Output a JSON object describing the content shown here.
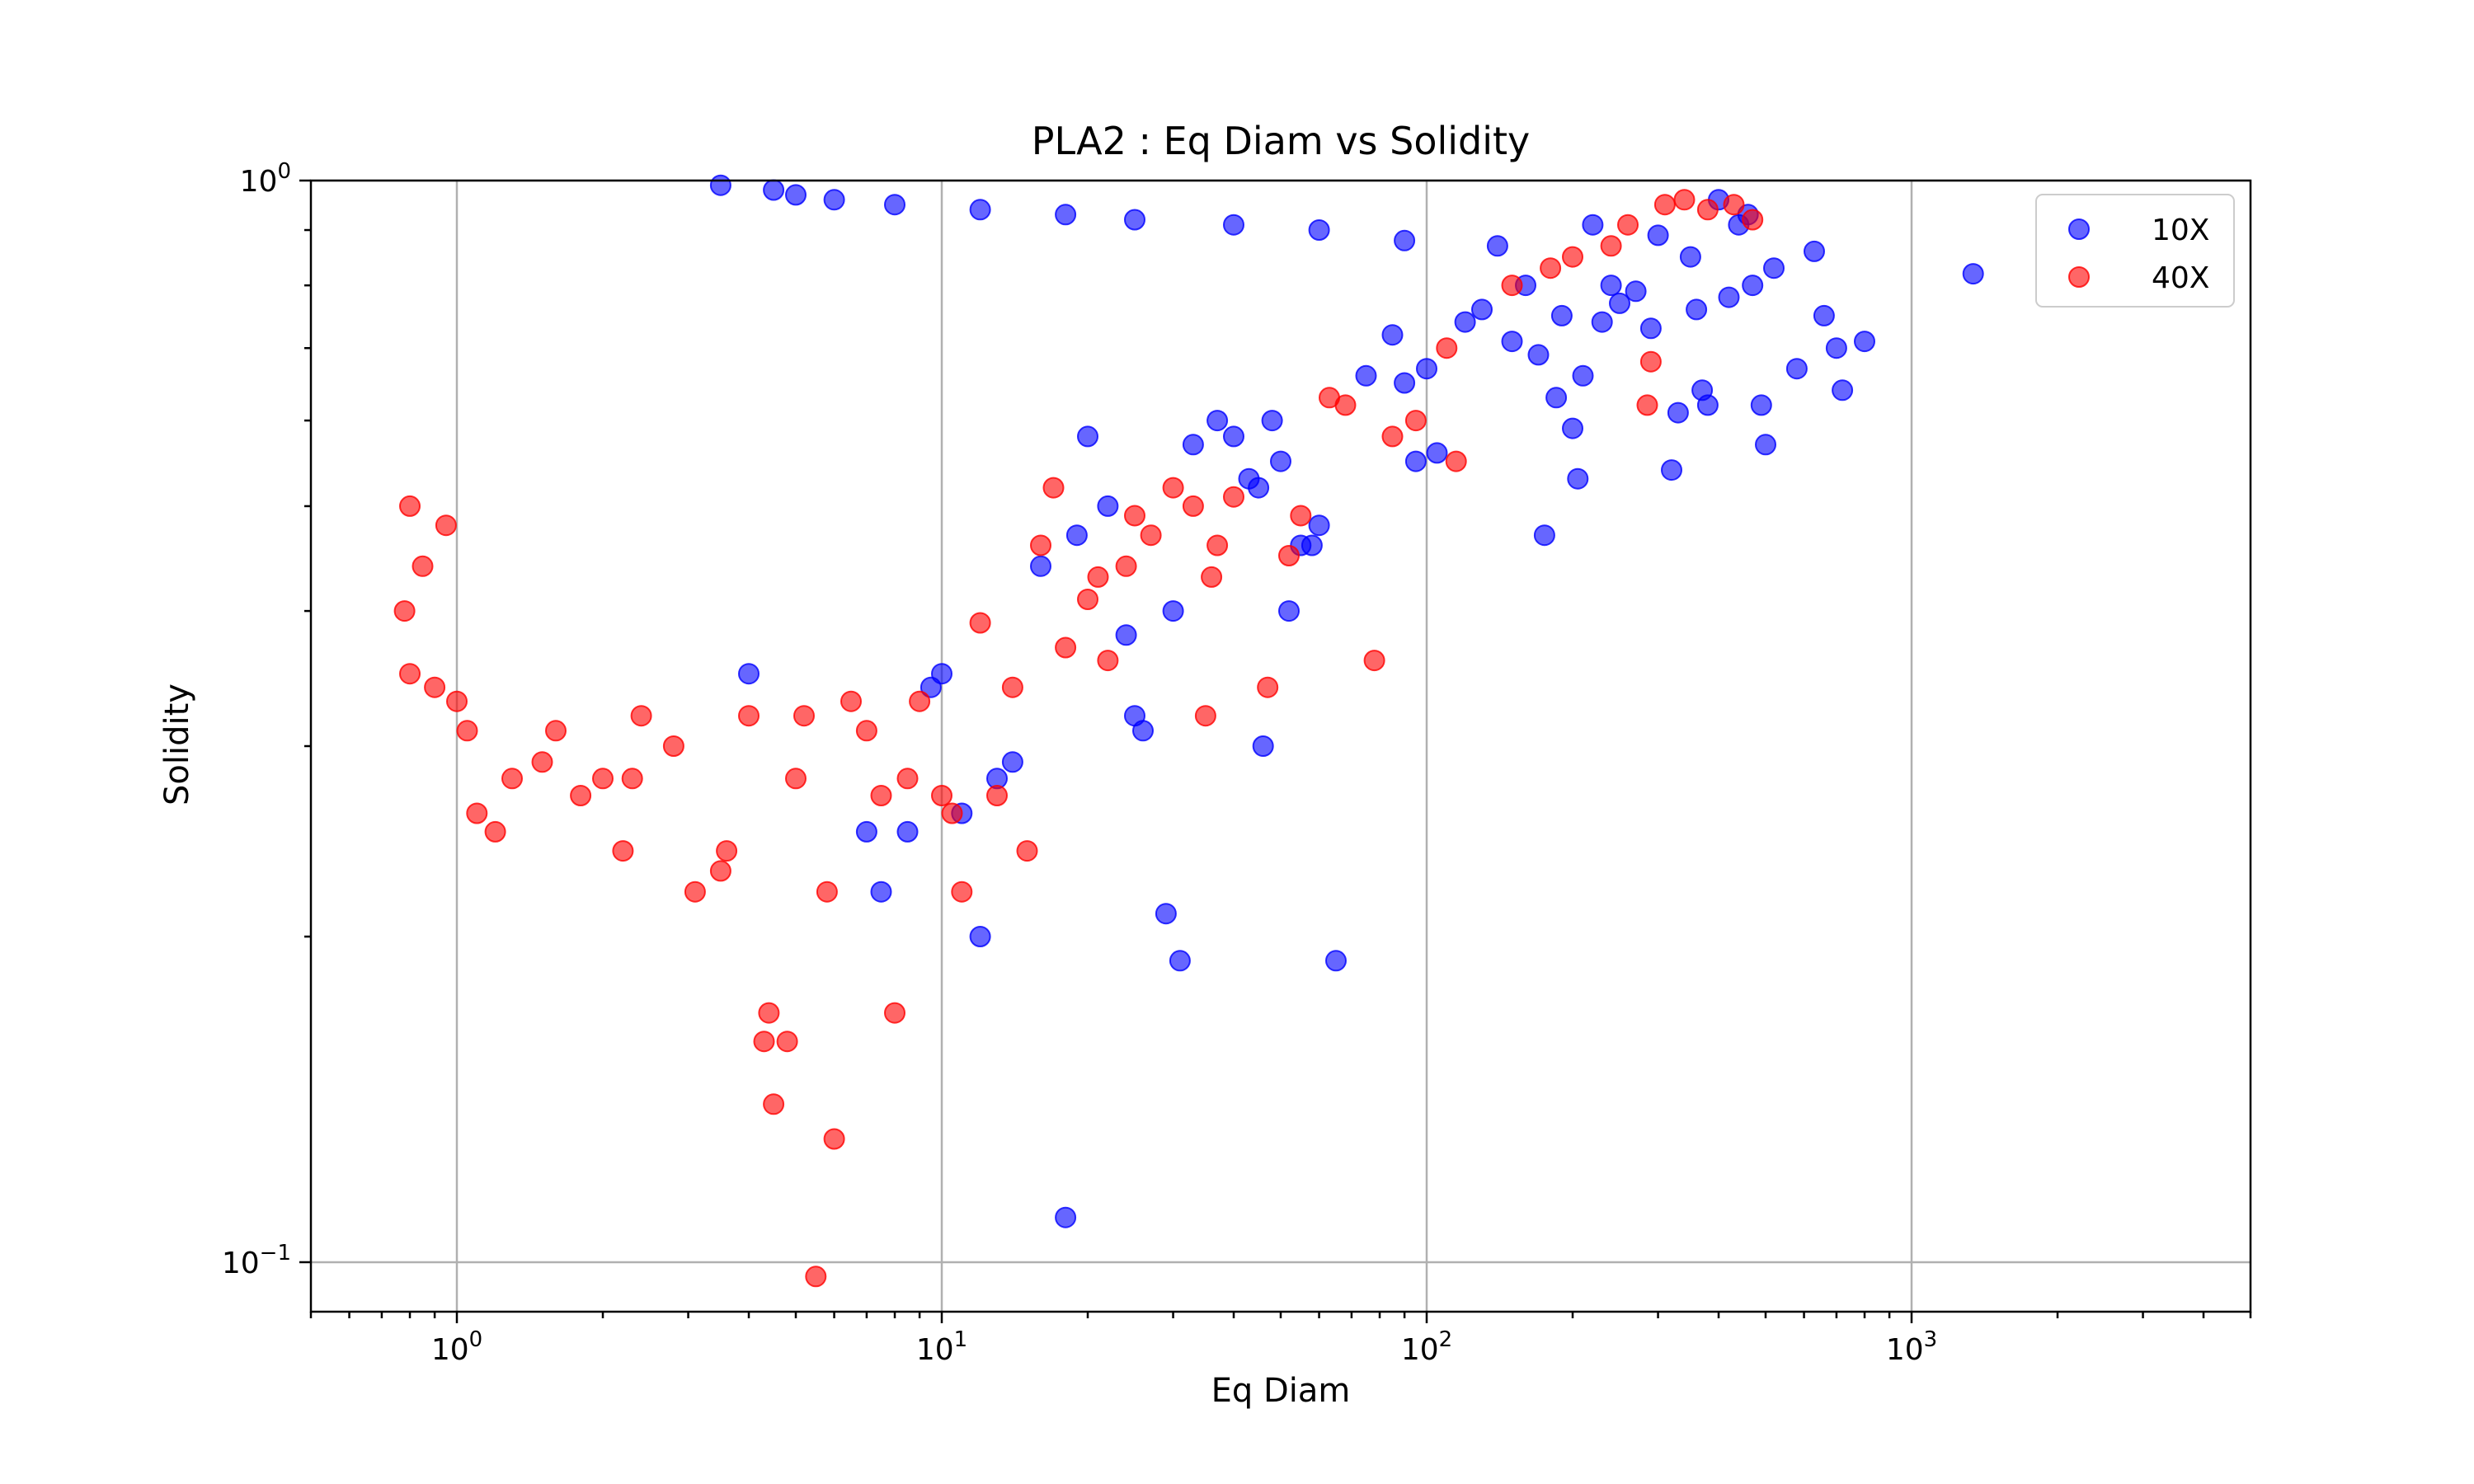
{
  "chart_data": {
    "type": "scatter",
    "title": "PLA2 : Eq Diam vs Solidity",
    "xlabel": "Eq Diam",
    "ylabel": "Solidity",
    "xscale": "log",
    "yscale": "log",
    "xlim": [
      0.5,
      5000
    ],
    "ylim": [
      0.09,
      1.0
    ],
    "grid": true,
    "legend": "top-right",
    "x_ticks": [
      {
        "base": "10",
        "exp": "0",
        "value": 1
      },
      {
        "base": "10",
        "exp": "1",
        "value": 10
      },
      {
        "base": "10",
        "exp": "2",
        "value": 100
      },
      {
        "base": "10",
        "exp": "3",
        "value": 1000
      }
    ],
    "y_ticks": [
      {
        "base": "10",
        "exp": "0",
        "value": 1.0
      },
      {
        "base": "10",
        "exp": "−1",
        "value": 0.1
      }
    ],
    "series": [
      {
        "name": "10X",
        "color": "#0000ff",
        "points": [
          [
            1340,
            0.82
          ],
          [
            800,
            0.71
          ],
          [
            700,
            0.7
          ],
          [
            720,
            0.64
          ],
          [
            660,
            0.75
          ],
          [
            630,
            0.86
          ],
          [
            580,
            0.67
          ],
          [
            520,
            0.83
          ],
          [
            490,
            0.62
          ],
          [
            500,
            0.57
          ],
          [
            470,
            0.8
          ],
          [
            460,
            0.93
          ],
          [
            440,
            0.91
          ],
          [
            420,
            0.78
          ],
          [
            400,
            0.96
          ],
          [
            380,
            0.62
          ],
          [
            370,
            0.64
          ],
          [
            360,
            0.76
          ],
          [
            350,
            0.85
          ],
          [
            330,
            0.61
          ],
          [
            320,
            0.54
          ],
          [
            300,
            0.89
          ],
          [
            290,
            0.73
          ],
          [
            270,
            0.79
          ],
          [
            250,
            0.77
          ],
          [
            240,
            0.8
          ],
          [
            230,
            0.74
          ],
          [
            220,
            0.91
          ],
          [
            210,
            0.66
          ],
          [
            205,
            0.53
          ],
          [
            200,
            0.59
          ],
          [
            190,
            0.75
          ],
          [
            185,
            0.63
          ],
          [
            175,
            0.47
          ],
          [
            170,
            0.69
          ],
          [
            160,
            0.8
          ],
          [
            150,
            0.71
          ],
          [
            140,
            0.87
          ],
          [
            130,
            0.76
          ],
          [
            120,
            0.74
          ],
          [
            105,
            0.56
          ],
          [
            100,
            0.67
          ],
          [
            95,
            0.55
          ],
          [
            90,
            0.65
          ],
          [
            85,
            0.72
          ],
          [
            75,
            0.66
          ],
          [
            65,
            0.19
          ],
          [
            60,
            0.48
          ],
          [
            58,
            0.46
          ],
          [
            55,
            0.46
          ],
          [
            52,
            0.4
          ],
          [
            50,
            0.55
          ],
          [
            48,
            0.6
          ],
          [
            46,
            0.3
          ],
          [
            45,
            0.52
          ],
          [
            43,
            0.53
          ],
          [
            40,
            0.58
          ],
          [
            37,
            0.6
          ],
          [
            33,
            0.57
          ],
          [
            31,
            0.19
          ],
          [
            30,
            0.4
          ],
          [
            29,
            0.21
          ],
          [
            26,
            0.31
          ],
          [
            25,
            0.32
          ],
          [
            24,
            0.38
          ],
          [
            22,
            0.5
          ],
          [
            20,
            0.58
          ],
          [
            19,
            0.47
          ],
          [
            18,
            0.11
          ],
          [
            16,
            0.44
          ],
          [
            14,
            0.29
          ],
          [
            13,
            0.28
          ],
          [
            12,
            0.2
          ],
          [
            11,
            0.26
          ],
          [
            10,
            0.35
          ],
          [
            9.5,
            0.34
          ],
          [
            8.5,
            0.25
          ],
          [
            7.5,
            0.22
          ],
          [
            7.0,
            0.25
          ],
          [
            4.0,
            0.35
          ],
          [
            4.5,
            0.98
          ],
          [
            3.5,
            0.99
          ],
          [
            5.0,
            0.97
          ],
          [
            6.0,
            0.96
          ],
          [
            8.0,
            0.95
          ],
          [
            12,
            0.94
          ],
          [
            18,
            0.93
          ],
          [
            25,
            0.92
          ],
          [
            40,
            0.91
          ],
          [
            60,
            0.9
          ],
          [
            90,
            0.88
          ]
        ]
      },
      {
        "name": "40X",
        "color": "#ff0000",
        "points": [
          [
            470,
            0.92
          ],
          [
            430,
            0.95
          ],
          [
            380,
            0.94
          ],
          [
            340,
            0.96
          ],
          [
            310,
            0.95
          ],
          [
            290,
            0.68
          ],
          [
            285,
            0.62
          ],
          [
            260,
            0.91
          ],
          [
            240,
            0.87
          ],
          [
            200,
            0.85
          ],
          [
            180,
            0.83
          ],
          [
            150,
            0.8
          ],
          [
            115,
            0.55
          ],
          [
            110,
            0.7
          ],
          [
            95,
            0.6
          ],
          [
            85,
            0.58
          ],
          [
            78,
            0.36
          ],
          [
            68,
            0.62
          ],
          [
            63,
            0.63
          ],
          [
            55,
            0.49
          ],
          [
            52,
            0.45
          ],
          [
            47,
            0.34
          ],
          [
            40,
            0.51
          ],
          [
            37,
            0.46
          ],
          [
            36,
            0.43
          ],
          [
            35,
            0.32
          ],
          [
            33,
            0.5
          ],
          [
            30,
            0.52
          ],
          [
            27,
            0.47
          ],
          [
            25,
            0.49
          ],
          [
            24,
            0.44
          ],
          [
            22,
            0.36
          ],
          [
            21,
            0.43
          ],
          [
            20,
            0.41
          ],
          [
            18,
            0.37
          ],
          [
            17,
            0.52
          ],
          [
            16,
            0.46
          ],
          [
            15,
            0.24
          ],
          [
            14,
            0.34
          ],
          [
            13,
            0.27
          ],
          [
            12,
            0.39
          ],
          [
            11,
            0.22
          ],
          [
            10.5,
            0.26
          ],
          [
            10,
            0.27
          ],
          [
            9,
            0.33
          ],
          [
            8.5,
            0.28
          ],
          [
            8,
            0.17
          ],
          [
            7.5,
            0.27
          ],
          [
            7,
            0.31
          ],
          [
            6.5,
            0.33
          ],
          [
            6,
            0.13
          ],
          [
            5.8,
            0.22
          ],
          [
            5.5,
            0.097
          ],
          [
            5.2,
            0.32
          ],
          [
            5.0,
            0.28
          ],
          [
            4.8,
            0.16
          ],
          [
            4.5,
            0.14
          ],
          [
            4.4,
            0.17
          ],
          [
            4.3,
            0.16
          ],
          [
            4.0,
            0.32
          ],
          [
            3.6,
            0.24
          ],
          [
            3.5,
            0.23
          ],
          [
            3.1,
            0.22
          ],
          [
            2.8,
            0.3
          ],
          [
            2.4,
            0.32
          ],
          [
            2.3,
            0.28
          ],
          [
            2.2,
            0.24
          ],
          [
            2.0,
            0.28
          ],
          [
            1.8,
            0.27
          ],
          [
            1.6,
            0.31
          ],
          [
            1.5,
            0.29
          ],
          [
            1.3,
            0.28
          ],
          [
            1.2,
            0.25
          ],
          [
            1.1,
            0.26
          ],
          [
            1.05,
            0.31
          ],
          [
            1.0,
            0.33
          ],
          [
            0.9,
            0.34
          ],
          [
            0.8,
            0.35
          ],
          [
            0.78,
            0.4
          ],
          [
            0.85,
            0.44
          ],
          [
            0.95,
            0.48
          ],
          [
            0.8,
            0.5
          ]
        ]
      }
    ]
  }
}
